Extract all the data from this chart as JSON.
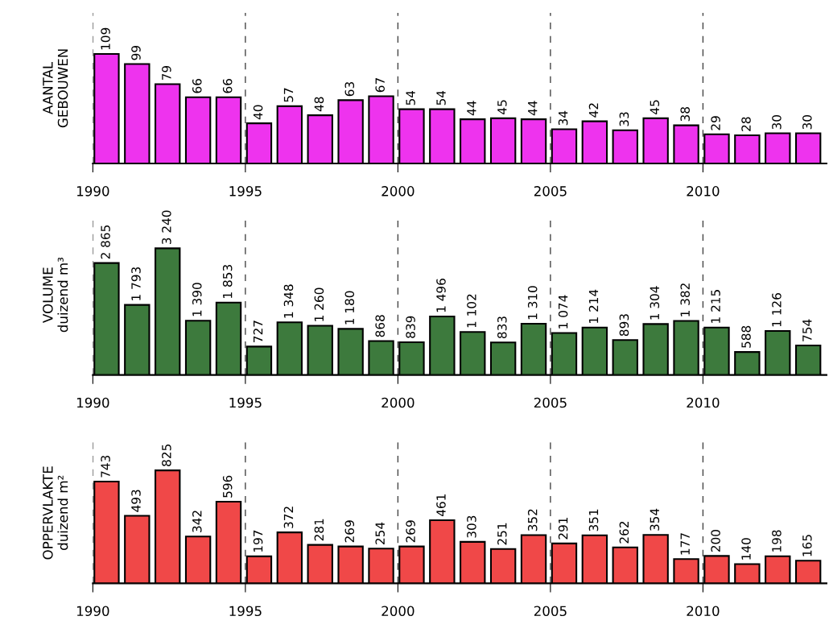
{
  "chart_data": [
    {
      "type": "bar",
      "ylabel": "AANTAL\nGEBOUWEN",
      "x": [
        1990,
        1991,
        1992,
        1993,
        1994,
        1995,
        1996,
        1997,
        1998,
        1999,
        2000,
        2001,
        2002,
        2003,
        2004,
        2005,
        2006,
        2007,
        2008,
        2009,
        2010,
        2011,
        2012,
        2013
      ],
      "values": [
        109,
        99,
        79,
        66,
        66,
        40,
        57,
        48,
        63,
        67,
        54,
        54,
        44,
        45,
        44,
        34,
        42,
        33,
        45,
        38,
        29,
        28,
        30,
        30
      ],
      "color": "#ee33ee",
      "data_labels": true,
      "xlim": [
        1989.55,
        2013.6
      ],
      "xticks": [
        {
          "value": 1989.55,
          "label": "1990"
        },
        {
          "value": 1994.55,
          "label": "1995"
        },
        {
          "value": 1999.55,
          "label": "2000"
        },
        {
          "value": 2004.55,
          "label": "2005"
        },
        {
          "value": 2009.55,
          "label": "2010"
        }
      ],
      "ylim": [
        0,
        150
      ],
      "grid": "x",
      "tick_labels": "x"
    },
    {
      "type": "bar",
      "ylabel": "VOLUME\nduizend m³",
      "x": [
        1990,
        1991,
        1992,
        1993,
        1994,
        1995,
        1996,
        1997,
        1998,
        1999,
        2000,
        2001,
        2002,
        2003,
        2004,
        2005,
        2006,
        2007,
        2008,
        2009,
        2010,
        2011,
        2012,
        2013
      ],
      "values": [
        2865,
        1793,
        3240,
        1390,
        1853,
        727,
        1348,
        1260,
        1180,
        868,
        839,
        1496,
        1102,
        833,
        1310,
        1074,
        1214,
        893,
        1304,
        1382,
        1215,
        588,
        1126,
        754
      ],
      "color": "#3d7a3d",
      "value_labels": [
        "2 865",
        "1 793",
        "3 240",
        "1 390",
        "1 853",
        "727",
        "1 348",
        "1 260",
        "1 180",
        "868",
        "839",
        "1 496",
        "1 102",
        "833",
        "1 310",
        "1 074",
        "1 214",
        "893",
        "1 304",
        "1 382",
        "1 215",
        "588",
        "1 126",
        "754"
      ],
      "xlim": [
        1989.55,
        2013.6
      ],
      "xticks": [
        {
          "value": 1989.55,
          "label": "1990"
        },
        {
          "value": 1994.55,
          "label": "1995"
        },
        {
          "value": 1999.55,
          "label": "2000"
        },
        {
          "value": 2004.55,
          "label": "2005"
        },
        {
          "value": 2009.55,
          "label": "2010"
        }
      ],
      "ylim": [
        0,
        4100
      ],
      "grid": "x",
      "tick_labels": "x"
    },
    {
      "type": "bar",
      "ylabel": "OPPERVLAKTE\nduizend m²",
      "x": [
        1990,
        1991,
        1992,
        1993,
        1994,
        1995,
        1996,
        1997,
        1998,
        1999,
        2000,
        2001,
        2002,
        2003,
        2004,
        2005,
        2006,
        2007,
        2008,
        2009,
        2010,
        2011,
        2012,
        2013
      ],
      "values": [
        743,
        493,
        825,
        342,
        596,
        197,
        372,
        281,
        269,
        254,
        269,
        461,
        303,
        251,
        352,
        291,
        351,
        262,
        354,
        177,
        200,
        140,
        198,
        165
      ],
      "color": "#f04848",
      "data_labels": true,
      "xlim": [
        1989.55,
        2013.6
      ],
      "xticks": [
        {
          "value": 1989.55,
          "label": "1990"
        },
        {
          "value": 1994.55,
          "label": "1995"
        },
        {
          "value": 1999.55,
          "label": "2000"
        },
        {
          "value": 2004.55,
          "label": "2005"
        },
        {
          "value": 2009.55,
          "label": "2010"
        }
      ],
      "ylim": [
        0,
        1030
      ],
      "grid": "x",
      "tick_labels": "x"
    }
  ]
}
